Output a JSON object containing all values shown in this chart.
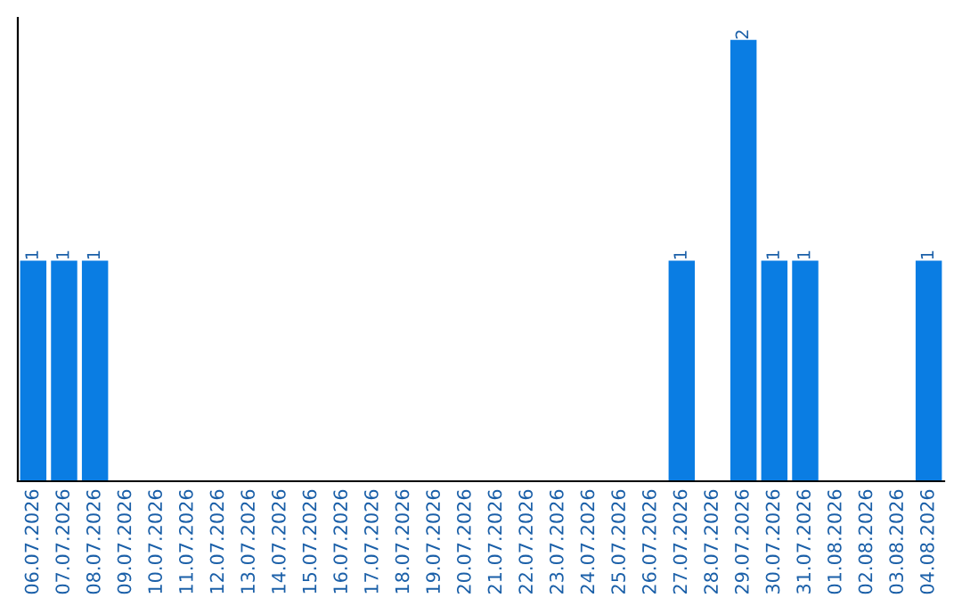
{
  "chart_data": {
    "type": "bar",
    "categories": [
      "06.07.2026",
      "07.07.2026",
      "08.07.2026",
      "09.07.2026",
      "10.07.2026",
      "11.07.2026",
      "12.07.2026",
      "13.07.2026",
      "14.07.2026",
      "15.07.2026",
      "16.07.2026",
      "17.07.2026",
      "18.07.2026",
      "19.07.2026",
      "20.07.2026",
      "21.07.2026",
      "22.07.2026",
      "23.07.2026",
      "24.07.2026",
      "25.07.2026",
      "26.07.2026",
      "27.07.2026",
      "28.07.2026",
      "29.07.2026",
      "30.07.2026",
      "31.07.2026",
      "01.08.2026",
      "02.08.2026",
      "03.08.2026",
      "04.08.2026"
    ],
    "values": [
      1,
      1,
      1,
      0,
      0,
      0,
      0,
      0,
      0,
      0,
      0,
      0,
      0,
      0,
      0,
      0,
      0,
      0,
      0,
      0,
      0,
      1,
      0,
      2,
      1,
      1,
      0,
      0,
      0,
      1
    ],
    "value_labels": [
      "1",
      "1",
      "1",
      null,
      null,
      null,
      null,
      null,
      null,
      null,
      null,
      null,
      null,
      null,
      null,
      null,
      null,
      null,
      null,
      null,
      null,
      "1",
      null,
      "2",
      "1",
      "1",
      null,
      null,
      null,
      "1"
    ],
    "color": "#0a7de3",
    "grid": false,
    "legend": false
  }
}
